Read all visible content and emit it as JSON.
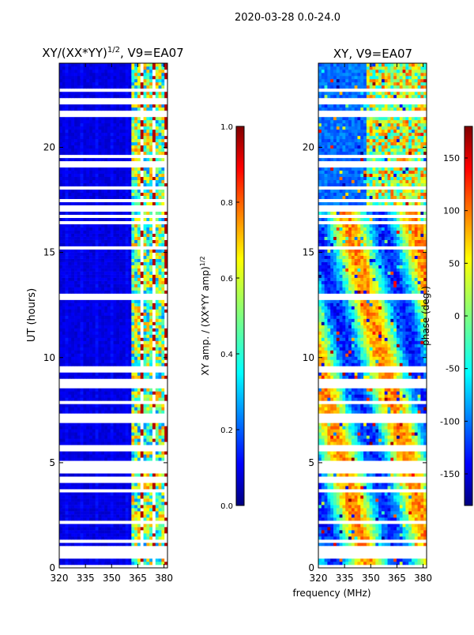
{
  "suptitle": "2020-03-28 0.0-24.0",
  "colors": {
    "jet": [
      "#00007f",
      "#0000ff",
      "#007fff",
      "#00ffff",
      "#7fff7f",
      "#ffff00",
      "#ff7f00",
      "#ff0000",
      "#7f0000"
    ]
  },
  "chart_data": [
    {
      "type": "heatmap",
      "title_main": "XY/(XX*YY)",
      "title_sup": "1/2",
      "title_tail": ", V9=EA07",
      "xlabel": "",
      "ylabel": "UT (hours)",
      "xlim": [
        320,
        382
      ],
      "ylim": [
        0,
        24
      ],
      "xticks": [
        320,
        335,
        350,
        365,
        380
      ],
      "yticks": [
        0,
        5,
        10,
        15,
        20
      ],
      "colorbar": {
        "label_main": "XY amp. / (XX*YY amp)",
        "label_sup": "1/2",
        "range": [
          0.0,
          1.0
        ],
        "ticks": [
          "0.0",
          "0.2",
          "0.4",
          "0.6",
          "0.8",
          "1.0"
        ]
      },
      "description_bands": [
        {
          "freq_range": [
            320,
            360
          ],
          "value_approx": 0.1
        },
        {
          "freq_range": [
            360,
            382
          ],
          "value_approx": 0.5
        }
      ]
    },
    {
      "type": "heatmap",
      "title": "XY, V9=EA07",
      "xlabel": "frequency (MHz)",
      "ylabel": "",
      "xlim": [
        320,
        382
      ],
      "ylim": [
        0,
        24
      ],
      "xticks": [
        320,
        335,
        350,
        365,
        380
      ],
      "yticks": [
        0,
        5,
        10,
        15,
        20
      ],
      "colorbar": {
        "label": "phase (deg.)",
        "range": [
          -180,
          180
        ],
        "ticks": [
          "-150",
          "-100",
          "-50",
          "0",
          "50",
          "100",
          "150"
        ]
      }
    }
  ]
}
